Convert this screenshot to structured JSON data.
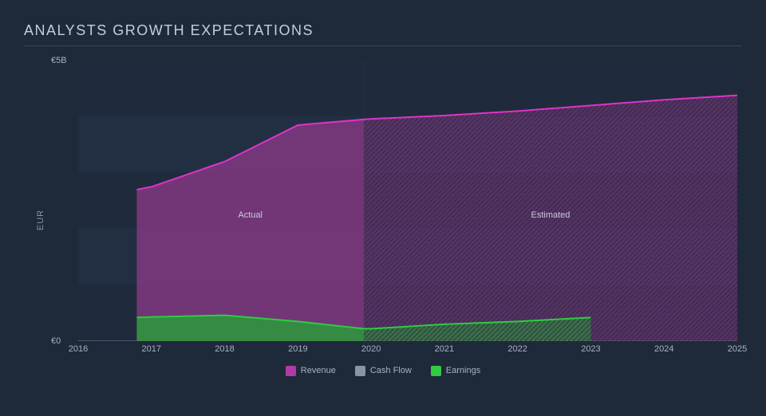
{
  "chart": {
    "title": "ANALYSTS GROWTH EXPECTATIONS",
    "y_axis_label": "EUR",
    "background_color": "#1e2a3a",
    "plot_background": "#1f2b3c",
    "gridline_color": "#2a3648",
    "gridband_color_1": "#202d3f",
    "gridband_color_2": "#222f42",
    "text_color": "#a8b2c0",
    "title_color": "#c5cdd8",
    "title_fontsize": 18,
    "tick_fontsize": 11,
    "x": {
      "min": 2016,
      "max": 2025,
      "ticks": [
        "2016",
        "2017",
        "2018",
        "2019",
        "2020",
        "2021",
        "2022",
        "2023",
        "2024",
        "2025"
      ]
    },
    "y": {
      "min": 0,
      "max": 5,
      "ticks": [
        {
          "v": 0,
          "label": "€0"
        },
        {
          "v": 5,
          "label": "€5B"
        }
      ],
      "bands": [
        {
          "from": 1,
          "to": 2
        },
        {
          "from": 3,
          "to": 4
        }
      ]
    },
    "split_year": 2019.9,
    "region_labels": {
      "actual": "Actual",
      "estimated": "Estimated"
    },
    "series": {
      "revenue": {
        "label": "Revenue",
        "color_line": "#e033c8",
        "color_fill": "#8a3a88",
        "fill_opacity_actual": 0.78,
        "fill_opacity_est": 0.5,
        "points": [
          {
            "x": 2016.8,
            "y": 2.7
          },
          {
            "x": 2017.0,
            "y": 2.75
          },
          {
            "x": 2018.0,
            "y": 3.2
          },
          {
            "x": 2019.0,
            "y": 3.85
          },
          {
            "x": 2019.9,
            "y": 3.95
          },
          {
            "x": 2020.0,
            "y": 3.96
          },
          {
            "x": 2021.0,
            "y": 4.02
          },
          {
            "x": 2022.0,
            "y": 4.1
          },
          {
            "x": 2023.0,
            "y": 4.2
          },
          {
            "x": 2024.0,
            "y": 4.3
          },
          {
            "x": 2025.0,
            "y": 4.38
          },
          {
            "x": 2025.2,
            "y": 4.4
          }
        ]
      },
      "earnings": {
        "label": "Earnings",
        "color_line": "#2ecc40",
        "color_fill": "#2a9a3a",
        "fill_opacity_actual": 0.85,
        "fill_opacity_est": 0.55,
        "points": [
          {
            "x": 2016.8,
            "y": 0.42
          },
          {
            "x": 2017.0,
            "y": 0.43
          },
          {
            "x": 2018.0,
            "y": 0.46
          },
          {
            "x": 2019.0,
            "y": 0.35
          },
          {
            "x": 2019.9,
            "y": 0.22
          },
          {
            "x": 2020.0,
            "y": 0.22
          },
          {
            "x": 2021.0,
            "y": 0.3
          },
          {
            "x": 2022.0,
            "y": 0.35
          },
          {
            "x": 2023.0,
            "y": 0.42
          }
        ]
      },
      "cashflow": {
        "label": "Cash Flow",
        "color_line": "#9aa4b4",
        "color_fill": "#6b7686",
        "fill_opacity": 0.0,
        "points": []
      }
    },
    "legend": [
      {
        "key": "revenue",
        "label": "Revenue",
        "color": "#b23aa8"
      },
      {
        "key": "cashflow",
        "label": "Cash Flow",
        "color": "#8a94a4"
      },
      {
        "key": "earnings",
        "label": "Earnings",
        "color": "#2ecc40"
      }
    ],
    "hatch": {
      "stroke": "#0f1722",
      "width": 1,
      "spacing": 6,
      "opacity": 0.45
    }
  }
}
